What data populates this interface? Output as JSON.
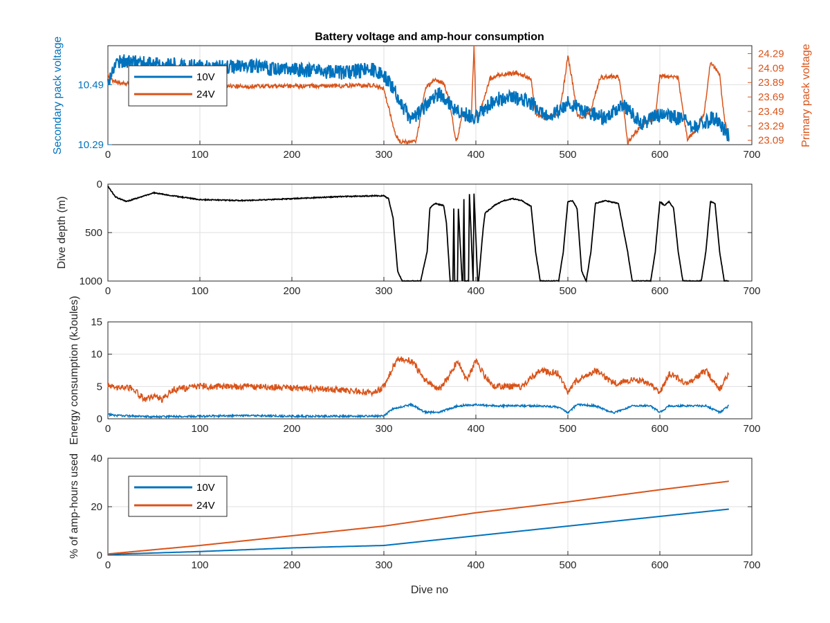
{
  "colors": {
    "v10": "#0072BD",
    "v24": "#D95319",
    "depth": "#000000",
    "axis": "#262626",
    "grid": "#dfdfdf"
  },
  "chart_data": [
    {
      "type": "line",
      "title": "Battery voltage and amp-hour consumption",
      "xlabel": "",
      "ylabel_left": "Secondary pack voltage",
      "ylabel_right": "Primary pack voltage",
      "xlim": [
        0,
        700
      ],
      "ylim_left": [
        10.29,
        10.62
      ],
      "ylim_right": [
        23.03,
        24.4
      ],
      "xticks": [
        "0",
        "100",
        "200",
        "300",
        "400",
        "500",
        "600",
        "700"
      ],
      "yticks_left": [
        "10.29",
        "10.49"
      ],
      "yticks_right": [
        "23.09",
        "23.29",
        "23.49",
        "23.69",
        "23.89",
        "24.09",
        "24.29"
      ],
      "legend": {
        "placement": "top-left",
        "entries": [
          "10V",
          "24V"
        ]
      },
      "series": [
        {
          "name": "10V",
          "axis": "left",
          "noise": 0.025,
          "x": [
            0,
            10,
            50,
            100,
            150,
            200,
            250,
            290,
            300,
            310,
            320,
            330,
            340,
            350,
            360,
            380,
            400,
            420,
            440,
            460,
            480,
            500,
            520,
            540,
            560,
            580,
            600,
            620,
            640,
            660,
            675
          ],
          "y": [
            10.5,
            10.57,
            10.56,
            10.55,
            10.55,
            10.54,
            10.53,
            10.54,
            10.52,
            10.48,
            10.42,
            10.37,
            10.4,
            10.44,
            10.46,
            10.4,
            10.38,
            10.44,
            10.45,
            10.43,
            10.38,
            10.43,
            10.4,
            10.38,
            10.42,
            10.36,
            10.39,
            10.38,
            10.35,
            10.38,
            10.32
          ]
        },
        {
          "name": "24V",
          "axis": "right",
          "noise": 0.03,
          "x": [
            0,
            5,
            15,
            60,
            100,
            200,
            290,
            300,
            312,
            317,
            335,
            345,
            355,
            365,
            372,
            378,
            380,
            385,
            395,
            398,
            400,
            402,
            405,
            415,
            425,
            445,
            460,
            465,
            475,
            490,
            495,
            500,
            505,
            510,
            515,
            525,
            535,
            555,
            560,
            565,
            580,
            595,
            600,
            620,
            625,
            630,
            640,
            648,
            655,
            665,
            670,
            675
          ],
          "y": [
            24.0,
            23.92,
            23.88,
            23.85,
            23.84,
            23.84,
            23.85,
            23.8,
            23.2,
            23.06,
            23.07,
            23.8,
            23.94,
            23.88,
            23.6,
            23.1,
            23.1,
            23.45,
            23.4,
            24.4,
            23.5,
            23.4,
            23.5,
            23.94,
            24.0,
            24.02,
            23.95,
            23.45,
            23.4,
            23.45,
            23.8,
            24.25,
            23.9,
            23.45,
            23.4,
            23.5,
            23.96,
            23.98,
            23.6,
            23.06,
            23.3,
            23.4,
            23.98,
            23.96,
            23.5,
            23.1,
            23.25,
            23.45,
            24.18,
            24.0,
            23.4,
            23.1
          ]
        }
      ]
    },
    {
      "type": "line",
      "xlabel": "",
      "ylabel": "Dive depth (m)",
      "xlim": [
        0,
        700
      ],
      "ylim": [
        0,
        1000
      ],
      "y_reversed": true,
      "xticks": [
        "0",
        "100",
        "200",
        "300",
        "400",
        "500",
        "600",
        "700"
      ],
      "yticks": [
        "0",
        "500",
        "1000"
      ],
      "series": [
        {
          "noise": 5,
          "x": [
            0,
            8,
            20,
            30,
            50,
            70,
            100,
            150,
            200,
            250,
            290,
            300,
            305,
            310,
            315,
            320,
            340,
            347,
            350,
            355,
            365,
            368,
            372,
            375,
            376,
            377,
            380,
            381,
            385,
            386,
            387,
            388,
            392,
            393,
            397,
            398,
            402,
            403,
            408,
            410,
            420,
            430,
            440,
            450,
            460,
            465,
            470,
            490,
            495,
            500,
            505,
            510,
            515,
            520,
            525,
            530,
            540,
            555,
            565,
            570,
            590,
            595,
            600,
            605,
            610,
            615,
            620,
            625,
            630,
            645,
            650,
            655,
            660,
            665,
            670,
            675
          ],
          "y": [
            20,
            130,
            180,
            150,
            90,
            120,
            160,
            170,
            150,
            130,
            120,
            120,
            150,
            350,
            900,
            1000,
            1000,
            700,
            250,
            200,
            220,
            400,
            1000,
            1000,
            250,
            1000,
            1000,
            250,
            1000,
            1000,
            150,
            1000,
            1000,
            100,
            1000,
            100,
            1000,
            1000,
            450,
            300,
            220,
            170,
            150,
            170,
            230,
            700,
            1000,
            1000,
            700,
            180,
            170,
            250,
            900,
            1000,
            700,
            200,
            170,
            200,
            700,
            1000,
            1000,
            700,
            180,
            220,
            180,
            250,
            700,
            1000,
            1000,
            1000,
            700,
            180,
            200,
            700,
            1000,
            1000
          ]
        }
      ]
    },
    {
      "type": "line",
      "xlabel": "",
      "ylabel": "Energy consumption (kJoules)",
      "xlim": [
        0,
        700
      ],
      "ylim": [
        0,
        15
      ],
      "xticks": [
        "0",
        "100",
        "200",
        "300",
        "400",
        "500",
        "600",
        "700"
      ],
      "yticks": [
        "0",
        "5",
        "10",
        "15"
      ],
      "series": [
        {
          "name": "24V",
          "noise": 0.5,
          "x": [
            0,
            10,
            25,
            40,
            50,
            60,
            70,
            100,
            150,
            200,
            250,
            290,
            300,
            310,
            315,
            330,
            345,
            360,
            370,
            380,
            390,
            400,
            410,
            420,
            450,
            470,
            490,
            500,
            510,
            530,
            550,
            570,
            590,
            600,
            610,
            630,
            650,
            665,
            675
          ],
          "y": [
            5.0,
            4.8,
            4.8,
            3.0,
            3.5,
            3.0,
            4.5,
            5.0,
            5.0,
            4.8,
            4.5,
            4.0,
            5.0,
            8.0,
            9.3,
            9.0,
            6.0,
            4.5,
            6.5,
            9.0,
            6.0,
            9.0,
            6.5,
            5.0,
            5.0,
            7.5,
            7.0,
            4.0,
            6.0,
            7.5,
            5.5,
            6.0,
            5.5,
            4.0,
            7.0,
            5.5,
            7.5,
            4.5,
            7.0
          ]
        },
        {
          "name": "10V",
          "noise": 0.15,
          "x": [
            0,
            10,
            50,
            100,
            150,
            200,
            250,
            300,
            310,
            330,
            345,
            360,
            380,
            400,
            420,
            450,
            470,
            490,
            500,
            510,
            530,
            550,
            570,
            590,
            600,
            610,
            630,
            650,
            665,
            675
          ],
          "y": [
            0.7,
            0.5,
            0.3,
            0.4,
            0.5,
            0.4,
            0.4,
            0.4,
            1.6,
            2.2,
            1.0,
            1.0,
            2.0,
            2.2,
            2.0,
            2.0,
            2.0,
            1.8,
            0.9,
            2.2,
            2.0,
            0.9,
            2.0,
            2.0,
            1.0,
            2.0,
            2.0,
            2.0,
            1.0,
            2.0
          ]
        }
      ]
    },
    {
      "type": "line",
      "xlabel": "Dive no",
      "ylabel": "% of amp-hours used",
      "xlim": [
        0,
        700
      ],
      "ylim": [
        0,
        40
      ],
      "xticks": [
        "0",
        "100",
        "200",
        "300",
        "400",
        "500",
        "600",
        "700"
      ],
      "yticks": [
        "0",
        "20",
        "40"
      ],
      "legend": {
        "placement": "left",
        "entries": [
          "10V",
          "24V"
        ]
      },
      "series": [
        {
          "name": "10V",
          "x": [
            0,
            100,
            200,
            300,
            400,
            500,
            600,
            675
          ],
          "y": [
            0.3,
            1.5,
            3.0,
            4.0,
            8.0,
            12.0,
            16.0,
            19.0
          ]
        },
        {
          "name": "24V",
          "x": [
            0,
            100,
            200,
            300,
            400,
            500,
            600,
            675
          ],
          "y": [
            0.5,
            4.0,
            8.0,
            12.0,
            17.5,
            22.0,
            27.0,
            30.5
          ]
        }
      ]
    }
  ]
}
